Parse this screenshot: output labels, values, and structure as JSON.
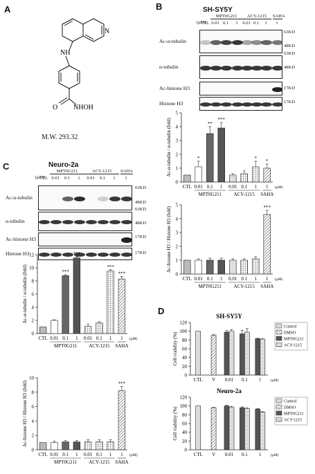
{
  "panels": {
    "A": "A",
    "B": "B",
    "C": "C",
    "D": "D"
  },
  "panelA": {
    "mw": "M.W. 293.32",
    "atoms": {
      "nh": "NH",
      "n": "N",
      "o": "O",
      "nhoh": "NHOH"
    }
  },
  "panelB": {
    "title": "SH-SY5Y",
    "unit": "(μM)",
    "groups": [
      "MPT0G211",
      "ACY-1215",
      "SAHA"
    ],
    "lanes": [
      "CTL",
      "0.01",
      "0.1",
      "1",
      "0.01",
      "0.1",
      "1",
      "1"
    ],
    "blots": [
      "Ac-α-tubulin",
      "α-tubulin",
      "Ac-histone H3",
      "Histone H3"
    ],
    "kd": [
      "63KD",
      "48KD",
      "63KD",
      "48KD",
      "17KD",
      "17KD"
    ]
  },
  "panelC": {
    "title": "Neuro-2a",
    "unit": "(μM)",
    "groups": [
      "MPT0G211",
      "ACY-1215",
      "SAHA"
    ],
    "lanes": [
      "CTL",
      "0.01",
      "0.1",
      "1",
      "0.01",
      "0.1",
      "1",
      "1"
    ],
    "blots": [
      "Ac-α-tubulin",
      "α-tubulin",
      "Ac-histone H3",
      "Histone H3"
    ],
    "kd": [
      "63KD",
      "48KD",
      "63KD",
      "48KD",
      "17KD",
      "17KD"
    ]
  },
  "panelD": {
    "unit": "(μM)",
    "legend": [
      "Control",
      "DMSO",
      "MPT0G211",
      "ACY-1215"
    ]
  },
  "chart_data": [
    {
      "id": "B1",
      "type": "bar",
      "ylabel": "Ac-α-tubulin / α-tubulin (fold)",
      "ylim": [
        0,
        5
      ],
      "yticks": [
        0,
        1,
        2,
        3,
        4,
        5
      ],
      "categories": [
        "CTL",
        "0.01",
        "0.1",
        "1",
        "0.01",
        "0.1",
        "1",
        "1"
      ],
      "groups": [
        "MPT0G211",
        "ACY-1215",
        "SAHA"
      ],
      "unit": "(μM)",
      "values": [
        0.5,
        1.1,
        3.5,
        3.9,
        0.5,
        0.6,
        1.1,
        1.0
      ],
      "errors": [
        0,
        0.4,
        0.5,
        0.4,
        0.1,
        0.2,
        0.4,
        0.3
      ],
      "stars": [
        "",
        "*",
        "**",
        "***",
        "",
        "",
        "*",
        "*"
      ]
    },
    {
      "id": "B2",
      "type": "bar",
      "ylabel": "Ac-histone H3 / Histone H3 (fold)",
      "ylim": [
        0,
        5
      ],
      "yticks": [
        0,
        1,
        2,
        3,
        4,
        5
      ],
      "categories": [
        "CTL",
        "0.01",
        "0.1",
        "1",
        "0.01",
        "0.1",
        "1",
        "1"
      ],
      "groups": [
        "MPT0G211",
        "ACY-1215",
        "SAHA"
      ],
      "unit": "(μM)",
      "values": [
        1.0,
        1.0,
        1.0,
        1.0,
        1.0,
        1.0,
        1.1,
        4.3
      ],
      "errors": [
        0,
        0.1,
        0.15,
        0.15,
        0.1,
        0.1,
        0.15,
        0.3
      ],
      "stars": [
        "",
        "",
        "",
        "",
        "",
        "",
        "",
        "***"
      ]
    },
    {
      "id": "C1",
      "type": "bar",
      "ylabel": "Ac-α-tubulin / α-tubulin (fold)",
      "ylim": [
        0,
        12
      ],
      "yticks": [
        0,
        2,
        4,
        6,
        8,
        10,
        12
      ],
      "categories": [
        "CTL",
        "0.01",
        "0.1",
        "1",
        "0.01",
        "0.1",
        "1",
        "1"
      ],
      "groups": [
        "MPT0G211",
        "ACY-1215",
        "SAHA"
      ],
      "unit": "(μM)",
      "values": [
        1.0,
        2.0,
        8.8,
        11.5,
        1.1,
        1.6,
        9.5,
        8.3
      ],
      "errors": [
        0,
        0.1,
        0.15,
        0.2,
        0.3,
        0.2,
        0.2,
        0.4
      ],
      "stars": [
        "",
        "",
        "***",
        "***",
        "",
        "",
        "***",
        "***"
      ]
    },
    {
      "id": "C2",
      "type": "bar",
      "ylabel": "Ac-histone H3 / Histone H3 (fold)",
      "ylim": [
        0,
        10
      ],
      "yticks": [
        0,
        2,
        4,
        6,
        8,
        10
      ],
      "categories": [
        "CTL",
        "0.01",
        "0.1",
        "1",
        "0.01",
        "0.1",
        "1",
        "1"
      ],
      "groups": [
        "MPT0G211",
        "ACY-1215",
        "SAHA"
      ],
      "unit": "(μM)",
      "values": [
        1.0,
        1.0,
        1.1,
        1.1,
        1.1,
        1.1,
        1.1,
        8.2
      ],
      "errors": [
        0,
        0.2,
        0.2,
        0.2,
        0.3,
        0.3,
        0.3,
        0.6
      ],
      "stars": [
        "",
        "",
        "",
        "",
        "",
        "",
        "",
        "***"
      ]
    },
    {
      "id": "D1",
      "type": "bar",
      "title": "SH-SY5Y",
      "ylabel": "Cell viability (%)",
      "ylim": [
        0,
        120
      ],
      "yticks": [
        0,
        20,
        40,
        60,
        80,
        100,
        120
      ],
      "categories": [
        "CTL",
        "V",
        "0.01",
        "0.1",
        "1"
      ],
      "unit": "(μM)",
      "series": [
        {
          "name": "Control",
          "values": [
            100,
            null,
            null,
            null,
            null
          ]
        },
        {
          "name": "DMSO",
          "values": [
            null,
            91,
            null,
            null,
            null
          ]
        },
        {
          "name": "MPT0G211",
          "values": [
            null,
            null,
            98,
            94,
            83
          ]
        },
        {
          "name": "ACY-1215",
          "values": [
            null,
            null,
            100,
            98,
            82
          ]
        }
      ],
      "errors": [
        0,
        2,
        4,
        8,
        1
      ]
    },
    {
      "id": "D2",
      "type": "bar",
      "title": "Neuro-2a",
      "ylabel": "Cell viability (%)",
      "ylim": [
        0,
        120
      ],
      "yticks": [
        0,
        20,
        40,
        60,
        80,
        100,
        120
      ],
      "categories": [
        "CTL",
        "V",
        "0.01",
        "0.1",
        "1"
      ],
      "unit": "(μM)",
      "series": [
        {
          "name": "Control",
          "values": [
            100,
            null,
            null,
            null,
            null
          ]
        },
        {
          "name": "DMSO",
          "values": [
            null,
            96,
            null,
            null,
            null
          ]
        },
        {
          "name": "MPT0G211",
          "values": [
            null,
            null,
            100,
            96,
            93
          ]
        },
        {
          "name": "ACY-1215",
          "values": [
            null,
            null,
            97,
            94,
            86
          ]
        }
      ],
      "errors": [
        0,
        1,
        2,
        2,
        1
      ]
    }
  ]
}
